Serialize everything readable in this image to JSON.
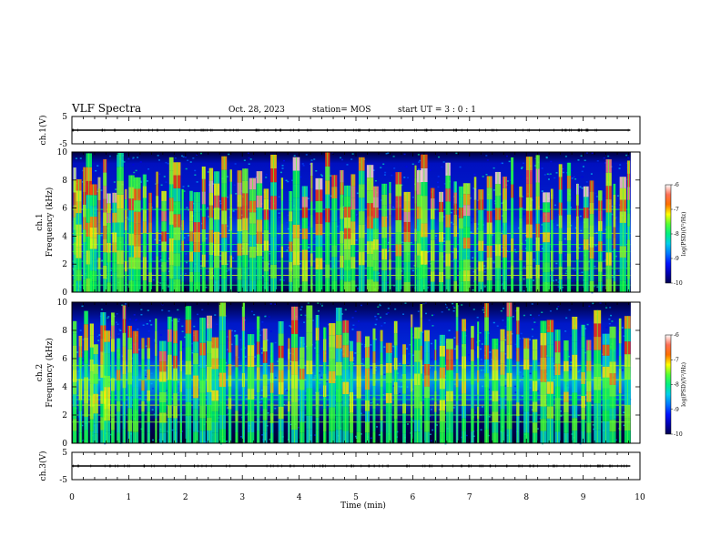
{
  "header": {
    "title": "VLF Spectra",
    "date": "Oct. 28, 2023",
    "station": "station= MOS",
    "start": "start  UT  =   3  :  0   :  1"
  },
  "chart_data": [
    {
      "type": "line",
      "name": "ch1-waveform",
      "ylabel": "ch.1(V)",
      "ylim": [
        -5,
        5
      ],
      "yticks": [
        "5",
        "-5"
      ],
      "xlim": [
        0,
        10
      ],
      "trace_x": [
        0,
        9.83
      ],
      "trace_y": [
        0,
        0
      ]
    },
    {
      "type": "heatmap",
      "name": "ch1-spectrogram",
      "ylabel_top": "ch.1",
      "ylabel": "Frequency (kHz)",
      "ylim": [
        0,
        10
      ],
      "yticks": [
        "0",
        "2",
        "4",
        "6",
        "8",
        "10"
      ],
      "xlim": [
        0,
        10
      ],
      "data_xmax": 9.83,
      "colorbar": {
        "label": "log(PSD)(V²/Hz)",
        "range": [
          -10,
          -6
        ],
        "ticks": [
          "-6",
          "-7",
          "-8",
          "-9",
          "-10"
        ]
      },
      "burst_times": [
        0.05,
        0.12,
        0.22,
        0.3,
        0.38,
        0.48,
        0.58,
        0.65,
        0.75,
        0.85,
        0.95,
        1.05,
        1.15,
        1.28,
        1.38,
        1.5,
        1.62,
        1.75,
        1.85,
        1.95,
        2.1,
        2.2,
        2.32,
        2.45,
        2.55,
        2.68,
        2.8,
        2.95,
        3.05,
        3.18,
        3.3,
        3.42,
        3.55,
        3.7,
        3.85,
        3.95,
        4.1,
        4.22,
        4.35,
        4.5,
        4.62,
        4.75,
        4.85,
        4.95,
        5.1,
        5.25,
        5.35,
        5.5,
        5.6,
        5.75,
        5.9,
        6.05,
        6.12,
        6.2,
        6.35,
        6.5,
        6.62,
        6.75,
        6.85,
        6.95,
        7.1,
        7.2,
        7.35,
        7.5,
        7.62,
        7.75,
        7.9,
        8.05,
        8.2,
        8.35,
        8.45,
        8.6,
        8.75,
        8.9,
        9.05,
        9.15,
        9.3,
        9.45,
        9.55,
        9.7,
        9.8
      ],
      "lines_khz": [
        0.5,
        1.2,
        1.7,
        2.2,
        2.9,
        3.4,
        4.2,
        5.9
      ]
    },
    {
      "type": "heatmap",
      "name": "ch2-spectrogram",
      "ylabel_top": "ch.2",
      "ylabel": "Frequency (kHz)",
      "ylim": [
        0,
        10
      ],
      "yticks": [
        "0",
        "2",
        "4",
        "6",
        "8",
        "10"
      ],
      "xlim": [
        0,
        10
      ],
      "data_xmax": 9.83,
      "colorbar": {
        "label": "log(PSD)(V²/Hz)",
        "range": [
          -10,
          -6
        ],
        "ticks": [
          "-6",
          "-7",
          "-8",
          "-9",
          "-10"
        ]
      },
      "burst_times": [
        0.05,
        0.15,
        0.25,
        0.35,
        0.42,
        0.55,
        0.62,
        0.72,
        0.82,
        0.92,
        1.02,
        1.12,
        1.25,
        1.35,
        1.48,
        1.6,
        1.72,
        1.82,
        1.92,
        2.05,
        2.18,
        2.3,
        2.42,
        2.52,
        2.65,
        2.78,
        2.9,
        3.02,
        3.15,
        3.28,
        3.4,
        3.52,
        3.68,
        3.82,
        3.92,
        4.05,
        4.18,
        4.32,
        4.45,
        4.58,
        4.7,
        4.82,
        4.92,
        5.05,
        5.2,
        5.32,
        5.45,
        5.58,
        5.7,
        5.85,
        5.98,
        6.08,
        6.15,
        6.25,
        6.4,
        6.52,
        6.65,
        6.78,
        6.9,
        7.05,
        7.15,
        7.3,
        7.45,
        7.58,
        7.7,
        7.85,
        8.0,
        8.15,
        8.3,
        8.42,
        8.55,
        8.7,
        8.85,
        9.0,
        9.1,
        9.25,
        9.4,
        9.52,
        9.65,
        9.78
      ],
      "lines_khz": [
        1.5,
        2.0,
        2.7,
        3.1,
        3.4,
        4.5,
        5.5
      ]
    },
    {
      "type": "line",
      "name": "ch3-waveform",
      "ylabel": "ch.3(V)",
      "ylim": [
        -5,
        5
      ],
      "yticks": [
        "5",
        "-5"
      ],
      "xlim": [
        0,
        10
      ],
      "xlabel": "Time  (min)",
      "xticks": [
        "0",
        "1",
        "2",
        "3",
        "4",
        "5",
        "6",
        "7",
        "8",
        "9",
        "10"
      ],
      "trace_x": [
        0,
        9.83
      ],
      "trace_y": [
        0,
        0
      ]
    }
  ]
}
